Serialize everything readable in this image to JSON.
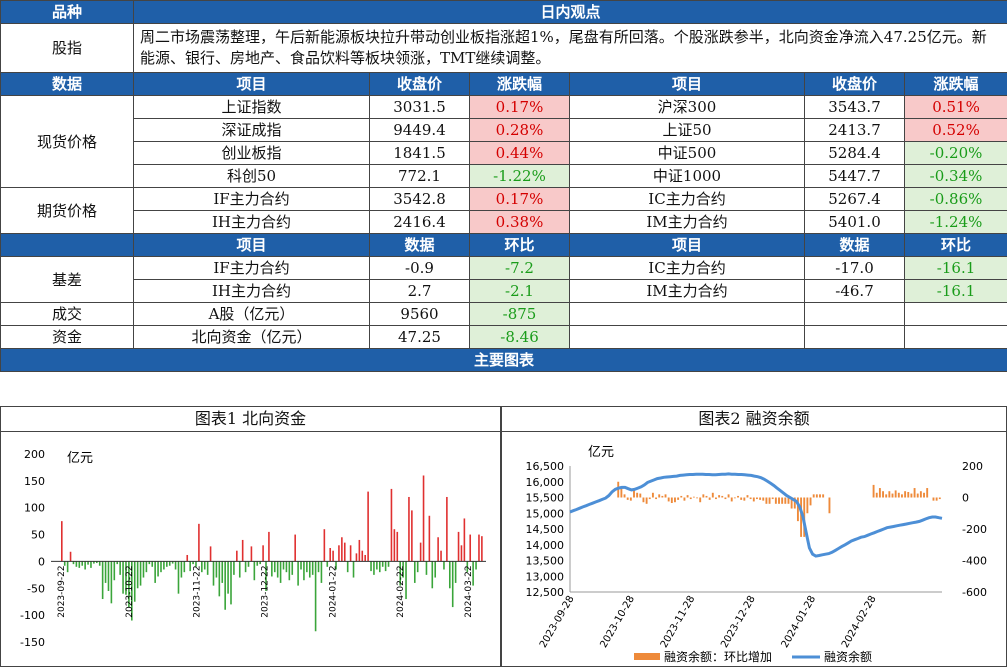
{
  "header": {
    "left": "品种",
    "right": "日内观点"
  },
  "commentary": {
    "label": "股指",
    "text": "周二市场震荡整理，午后新能源板块拉升带动创业板指涨超1%，尾盘有所回落。个股涨跌参半，北向资金净流入47.25亿元。新能源、银行、房地产、食品饮料等板块领涨，TMT继续调整。"
  },
  "price_header": {
    "section": "数据",
    "item": "项目",
    "close": "收盘价",
    "chg": "涨跌幅"
  },
  "spot": {
    "label": "现货价格",
    "rows": [
      {
        "l_name": "上证指数",
        "l_close": "3031.5",
        "l_chg": "0.17%",
        "l_dir": "pos",
        "r_name": "沪深300",
        "r_close": "3543.7",
        "r_chg": "0.51%",
        "r_dir": "pos"
      },
      {
        "l_name": "深证成指",
        "l_close": "9449.4",
        "l_chg": "0.28%",
        "l_dir": "pos",
        "r_name": "上证50",
        "r_close": "2413.7",
        "r_chg": "0.52%",
        "r_dir": "pos"
      },
      {
        "l_name": "创业板指",
        "l_close": "1841.5",
        "l_chg": "0.44%",
        "l_dir": "pos",
        "r_name": "中证500",
        "r_close": "5284.4",
        "r_chg": "-0.20%",
        "r_dir": "neg"
      },
      {
        "l_name": "科创50",
        "l_close": "772.1",
        "l_chg": "-1.22%",
        "l_dir": "neg",
        "r_name": "中证1000",
        "r_close": "5447.7",
        "r_chg": "-0.34%",
        "r_dir": "neg"
      }
    ]
  },
  "futures": {
    "label": "期货价格",
    "rows": [
      {
        "l_name": "IF主力合约",
        "l_close": "3542.8",
        "l_chg": "0.17%",
        "l_dir": "pos",
        "r_name": "IC主力合约",
        "r_close": "5267.4",
        "r_chg": "-0.86%",
        "r_dir": "neg"
      },
      {
        "l_name": "IH主力合约",
        "l_close": "2416.4",
        "l_chg": "0.38%",
        "l_dir": "pos",
        "r_name": "IM主力合约",
        "r_close": "5401.0",
        "r_chg": "-1.24%",
        "r_dir": "neg"
      }
    ]
  },
  "basis_header": {
    "item": "项目",
    "data": "数据",
    "hb": "环比"
  },
  "basis": {
    "label": "基差",
    "rows": [
      {
        "l_name": "IF主力合约",
        "l_val": "-0.9",
        "l_hb": "-7.2",
        "r_name": "IC主力合约",
        "r_val": "-17.0",
        "r_hb": "-16.1"
      },
      {
        "l_name": "IH主力合约",
        "l_val": "2.7",
        "l_hb": "-2.1",
        "r_name": "IM主力合约",
        "r_val": "-46.7",
        "r_hb": "-16.1"
      }
    ]
  },
  "turnover": {
    "label": "成交",
    "name": "A股（亿元）",
    "val": "9560",
    "hb": "-875"
  },
  "funds": {
    "label": "资金",
    "name": "北向资金（亿元）",
    "val": "47.25",
    "hb": "-8.46"
  },
  "charts_header": "主要图表",
  "chart_data": [
    {
      "type": "bar",
      "panel_title": "图表1  北向资金",
      "ylabel": "亿元",
      "ylim": [
        -150,
        200
      ],
      "yticks": [
        200,
        150,
        100,
        50,
        0,
        -50,
        -100,
        -150
      ],
      "xtick_labels": [
        "2023-09-22",
        "2023-10-22",
        "2023-11-22",
        "2023-12-22",
        "2024-01-22",
        "2024-02-22",
        "2024-03-22"
      ],
      "positive_color": "#e03030",
      "negative_color": "#3aa53a",
      "values": [
        75,
        -8,
        -20,
        18,
        -5,
        -10,
        -12,
        -8,
        -15,
        -6,
        -12,
        -4,
        -3,
        -8,
        -70,
        -40,
        -55,
        -78,
        -35,
        -5,
        -25,
        -60,
        -62,
        -85,
        -110,
        -75,
        -50,
        -45,
        -30,
        -20,
        -5,
        -10,
        -40,
        -28,
        -20,
        -15,
        -10,
        -8,
        -4,
        -15,
        -60,
        -30,
        -20,
        12,
        -18,
        -5,
        -10,
        70,
        -20,
        -15,
        -25,
        28,
        -45,
        -30,
        -65,
        -40,
        -90,
        -60,
        -80,
        -25,
        20,
        -30,
        40,
        -20,
        -10,
        28,
        -35,
        -8,
        -5,
        30,
        -55,
        55,
        -28,
        -20,
        -30,
        -40,
        -15,
        -20,
        -35,
        -25,
        50,
        -45,
        -15,
        -35,
        -20,
        -30,
        -25,
        -130,
        -20,
        -40,
        60,
        -10,
        25,
        20,
        -15,
        30,
        45,
        35,
        -20,
        30,
        -30,
        15,
        40,
        20,
        12,
        130,
        -18,
        -25,
        -15,
        -20,
        -10,
        -18,
        -10,
        135,
        60,
        55,
        -45,
        -30,
        -70,
        120,
        95,
        -40,
        -20,
        35,
        160,
        -25,
        85,
        -50,
        -30,
        45,
        20,
        -15,
        120,
        -50,
        -85,
        -40,
        55,
        30,
        80,
        -20,
        50,
        -45,
        -15,
        50,
        47
      ]
    },
    {
      "type": "bar+line",
      "panel_title": "图表2  融资余额",
      "ylabel": "亿元",
      "ylim_left": [
        12500,
        16500
      ],
      "ylim_right": [
        -600,
        200
      ],
      "yticks_left": [
        "16,500",
        "16,000",
        "15,500",
        "15,000",
        "14,500",
        "14,000",
        "13,500",
        "13,000",
        "12,500"
      ],
      "yticks_right": [
        "200",
        "0",
        "-200",
        "-400",
        "-600"
      ],
      "xtick_labels": [
        "2023-09-28",
        "2023-10-28",
        "2023-11-28",
        "2023-12-28",
        "2024-01-28",
        "2024-02-28"
      ],
      "legend": {
        "bar": "融资余额：环比增加",
        "line": "融资余额"
      },
      "bar_color": "#ee8a3a",
      "line_color": "#4d8fd6",
      "line_values": [
        15040,
        15080,
        15120,
        15160,
        15200,
        15240,
        15280,
        15320,
        15360,
        15400,
        15440,
        15480,
        15560,
        15680,
        15760,
        15800,
        15820,
        15820,
        15780,
        15740,
        15760,
        15800,
        15840,
        15900,
        15980,
        16020,
        16060,
        16100,
        16120,
        16140,
        16150,
        16160,
        16170,
        16180,
        16200,
        16210,
        16220,
        16230,
        16230,
        16240,
        16240,
        16240,
        16230,
        16230,
        16220,
        16220,
        16230,
        16240,
        16240,
        16250,
        16240,
        16240,
        16230,
        16230,
        16220,
        16210,
        16200,
        16180,
        16160,
        16130,
        16080,
        16020,
        15950,
        15880,
        15800,
        15720,
        15640,
        15560,
        15500,
        15440,
        15380,
        15200,
        14900,
        14400,
        13900,
        13700,
        13640,
        13660,
        13680,
        13700,
        13720,
        13760,
        13820,
        13880,
        13940,
        14000,
        14060,
        14120,
        14160,
        14200,
        14240,
        14260,
        14300,
        14340,
        14380,
        14420,
        14460,
        14500,
        14540,
        14560,
        14580,
        14600,
        14620,
        14640,
        14660,
        14680,
        14700,
        14720,
        14740,
        14780,
        14820,
        14860,
        14880,
        14880,
        14860,
        14840
      ],
      "bar_values": [
        0,
        0,
        0,
        0,
        0,
        0,
        0,
        0,
        0,
        0,
        0,
        0,
        0,
        0,
        0,
        100,
        70,
        20,
        -15,
        -20,
        60,
        30,
        25,
        -30,
        -40,
        -10,
        30,
        -10,
        20,
        10,
        20,
        -25,
        -35,
        -30,
        -15,
        10,
        -20,
        15,
        -10,
        5,
        -5,
        -30,
        20,
        10,
        -15,
        30,
        -10,
        15,
        10,
        -10,
        20,
        -25,
        -5,
        10,
        -15,
        -20,
        15,
        -10,
        -25,
        -10,
        -15,
        -20,
        -40,
        -40,
        -10,
        -40,
        -40,
        -40,
        -40,
        -40,
        -70,
        -70,
        -150,
        -250,
        -250,
        -100,
        -50,
        20,
        20,
        20,
        20,
        0,
        -100,
        0,
        0,
        0,
        0,
        0,
        0,
        0,
        0,
        0,
        0,
        0,
        0,
        0,
        80,
        30,
        60,
        40,
        20,
        40,
        25,
        45,
        30,
        20,
        40,
        35,
        25,
        60,
        25,
        40,
        30,
        60,
        0,
        -20,
        -20,
        -10
      ]
    }
  ]
}
